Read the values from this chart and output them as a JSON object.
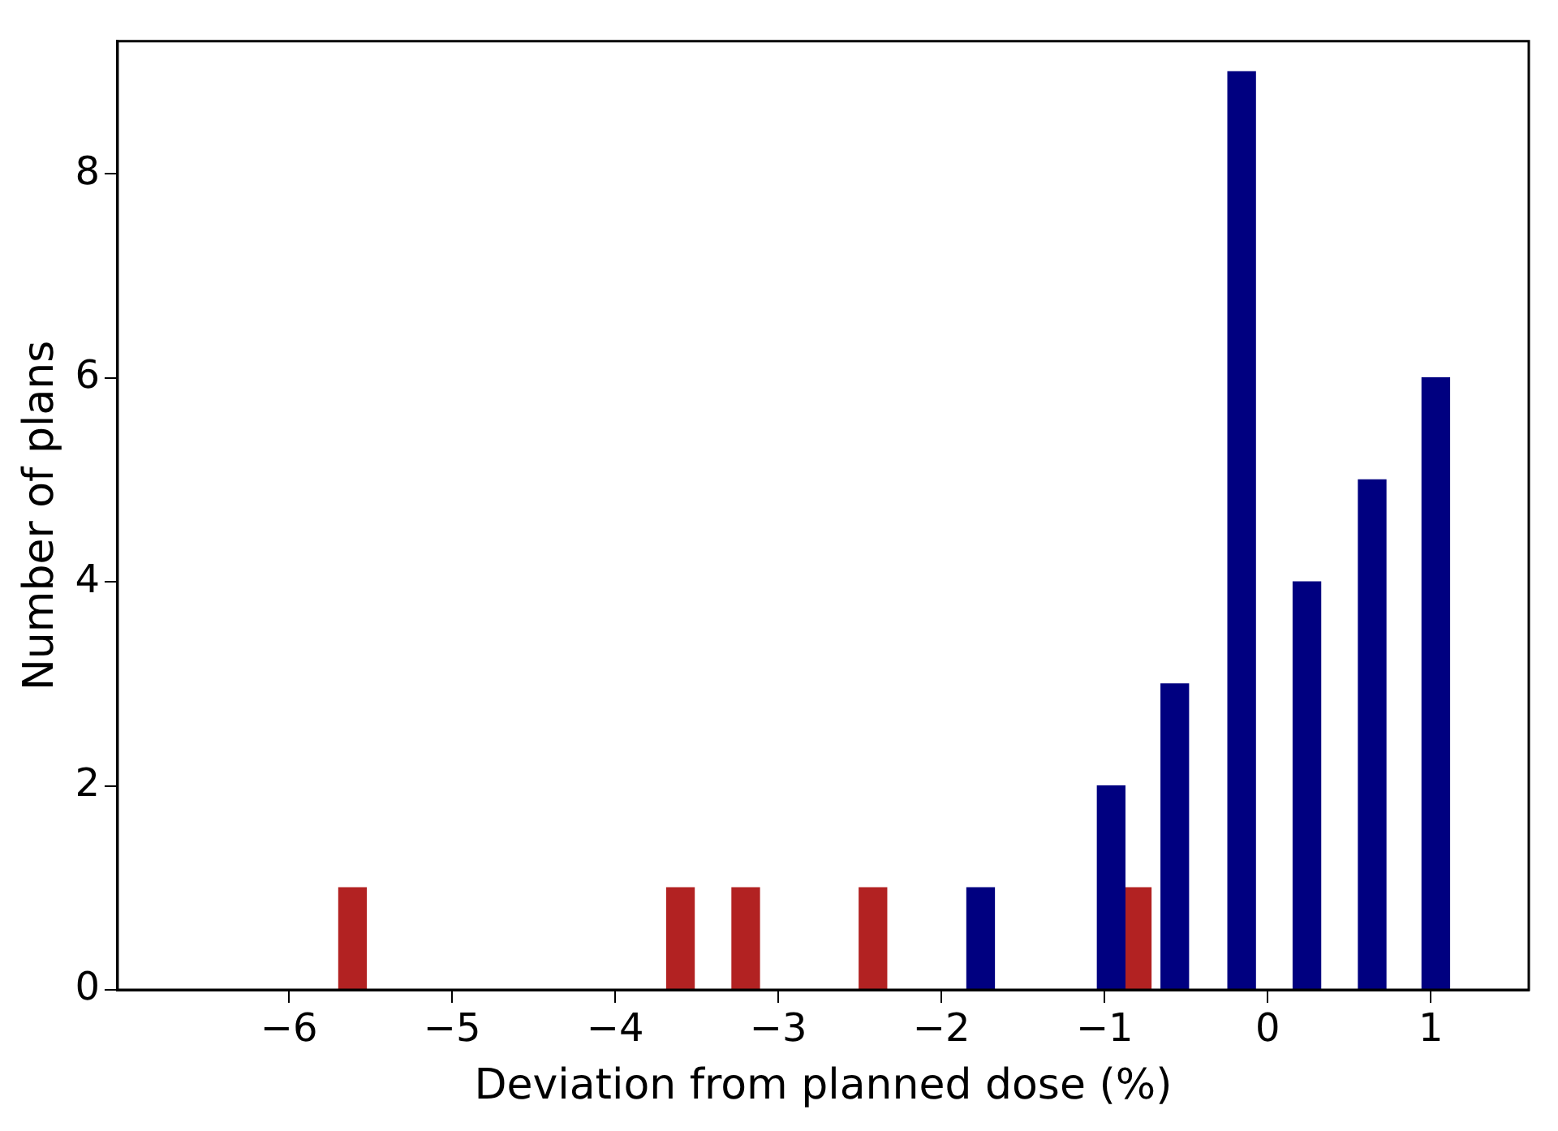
{
  "chart_data": {
    "type": "bar",
    "xlabel": "Deviation from planned dose (%)",
    "ylabel": "Number of plans",
    "xlim": [
      -7.05,
      1.6
    ],
    "xticks": [
      {
        "value": -6,
        "label": "−6"
      },
      {
        "value": -5,
        "label": "−5"
      },
      {
        "value": -4,
        "label": "−4"
      },
      {
        "value": -3,
        "label": "−3"
      },
      {
        "value": -2,
        "label": "−2"
      },
      {
        "value": -1,
        "label": "−1"
      },
      0,
      1
    ],
    "ylim": [
      0,
      9.3
    ],
    "yticks": [
      0,
      2,
      4,
      6,
      8
    ],
    "series": [
      {
        "color": "#000080",
        "x": [
          -1.76,
          -0.96,
          -0.57,
          -0.16,
          0.24,
          0.64,
          1.03
        ],
        "values": [
          1,
          2,
          3,
          9,
          4,
          5,
          6
        ]
      },
      {
        "color": "#b22222",
        "x": [
          -5.61,
          -3.6,
          -3.2,
          -2.42,
          -0.8
        ],
        "values": [
          1,
          1,
          1,
          1,
          1
        ]
      }
    ]
  }
}
